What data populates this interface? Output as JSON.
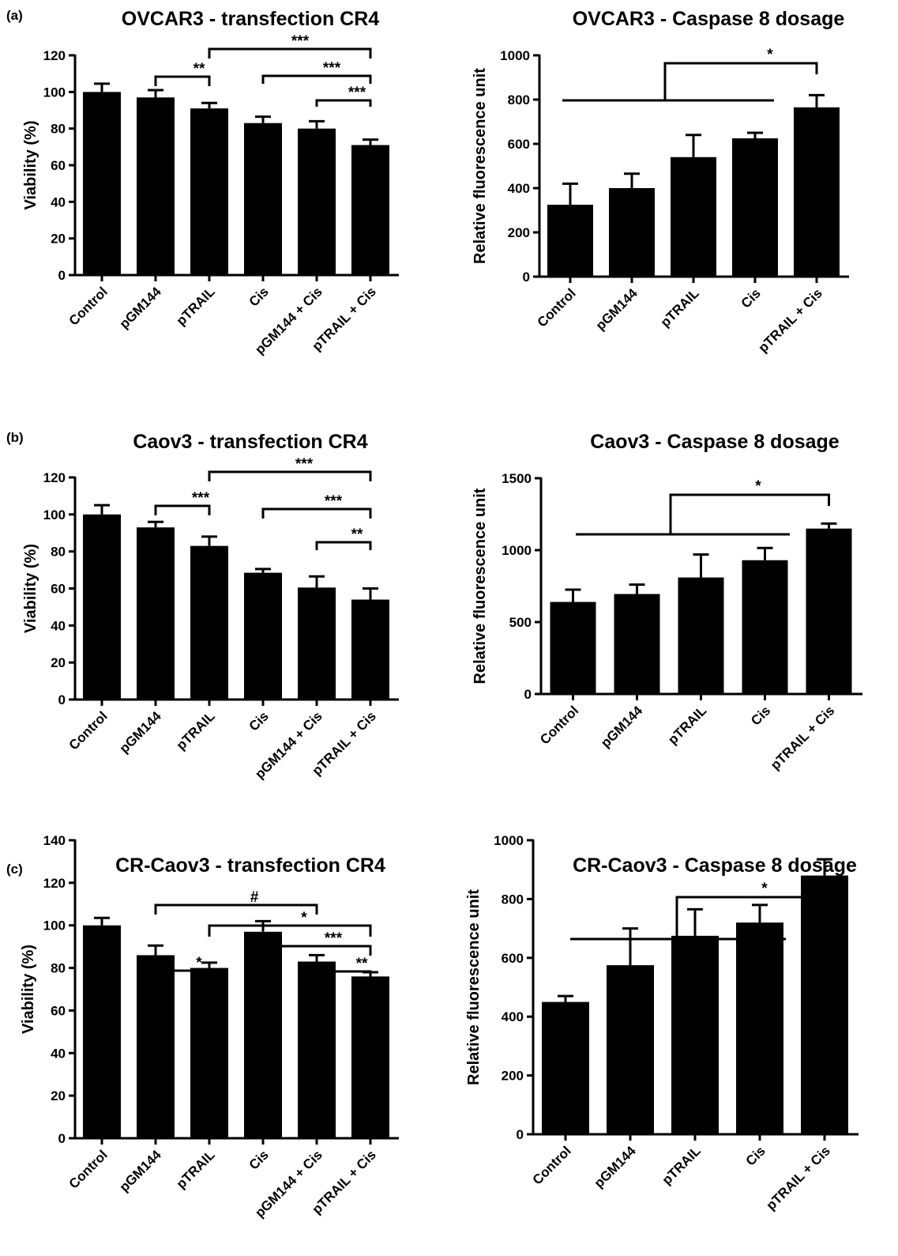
{
  "panel_labels": [
    "(a)",
    "(b)",
    "(c)"
  ],
  "chart_data": [
    {
      "type": "bar",
      "title": "OVCAR3 - transfection CR4",
      "ylabel": "Viability (%)",
      "categories": [
        "Control",
        "pGM144",
        "pTRAIL",
        "Cis",
        "pGM144 + Cis",
        "pTRAIL + Cis"
      ],
      "values": [
        100,
        97,
        91,
        83,
        80,
        71
      ],
      "errors": [
        4.5,
        4,
        3,
        3.5,
        4,
        3
      ],
      "ylim": [
        0,
        120
      ],
      "yticks": [
        0,
        20,
        40,
        60,
        80,
        100,
        120
      ],
      "annotations": [
        {
          "label": "**",
          "from": "pGM144",
          "to": "pTRAIL"
        },
        {
          "label": "***",
          "from": "pTRAIL",
          "to": "pTRAIL + Cis"
        },
        {
          "label": "***",
          "from": "Cis",
          "to": "pTRAIL + Cis"
        },
        {
          "label": "***",
          "from": "pGM144 + Cis",
          "to": "pTRAIL + Cis"
        }
      ]
    },
    {
      "type": "bar",
      "title": "OVCAR3 - Caspase 8 dosage",
      "ylabel": "Relative fluorescence unit",
      "categories": [
        "Control",
        "pGM144",
        "pTRAIL",
        "Cis",
        "pTRAIL + Cis"
      ],
      "values": [
        325,
        400,
        540,
        625,
        765
      ],
      "errors": [
        95,
        65,
        100,
        25,
        55
      ],
      "ylim": [
        0,
        1000
      ],
      "yticks": [
        0,
        200,
        400,
        600,
        800,
        1000
      ],
      "annotations": [
        {
          "label": "*",
          "group": [
            "Control",
            "pGM144",
            "pTRAIL",
            "Cis"
          ],
          "to": "pTRAIL + Cis"
        }
      ]
    },
    {
      "type": "bar",
      "title": "Caov3 - transfection CR4",
      "ylabel": "Viability (%)",
      "categories": [
        "Control",
        "pGM144",
        "pTRAIL",
        "Cis",
        "pGM144 + Cis",
        "pTRAIL + Cis"
      ],
      "values": [
        100,
        93,
        83,
        68.5,
        60.5,
        54
      ],
      "errors": [
        5,
        3,
        5,
        2,
        6,
        6
      ],
      "ylim": [
        0,
        120
      ],
      "yticks": [
        0,
        20,
        40,
        60,
        80,
        100,
        120
      ],
      "annotations": [
        {
          "label": "***",
          "from": "pGM144",
          "to": "pTRAIL"
        },
        {
          "label": "***",
          "from": "pTRAIL",
          "to": "pTRAIL + Cis"
        },
        {
          "label": "***",
          "from": "Cis",
          "to": "pTRAIL + Cis"
        },
        {
          "label": "**",
          "from": "pGM144 + Cis",
          "to": "pTRAIL + Cis"
        }
      ]
    },
    {
      "type": "bar",
      "title": "Caov3 - Caspase 8 dosage",
      "ylabel": "Relative fluorescence unit",
      "categories": [
        "Control",
        "pGM144",
        "pTRAIL",
        "Cis",
        "pTRAIL + Cis"
      ],
      "values": [
        640,
        695,
        810,
        930,
        1150
      ],
      "errors": [
        85,
        65,
        160,
        85,
        35
      ],
      "ylim": [
        0,
        1500
      ],
      "yticks": [
        0,
        500,
        1000,
        1500
      ],
      "annotations": [
        {
          "label": "*",
          "group": [
            "Control",
            "pGM144",
            "pTRAIL",
            "Cis"
          ],
          "to": "pTRAIL + Cis"
        }
      ]
    },
    {
      "type": "bar",
      "title": "CR-Caov3 - transfection CR4",
      "ylabel": "Viability (%)",
      "categories": [
        "Control",
        "pGM144",
        "pTRAIL",
        "Cis",
        "pGM144 + Cis",
        "pTRAIL + Cis"
      ],
      "values": [
        100,
        86,
        80,
        97,
        83,
        76
      ],
      "errors": [
        3.5,
        4.5,
        2.5,
        5,
        3,
        2
      ],
      "ylim": [
        0,
        140
      ],
      "yticks": [
        0,
        20,
        40,
        60,
        80,
        100,
        120,
        140
      ],
      "annotations": [
        {
          "label": "*",
          "from": "pGM144",
          "to": "pTRAIL"
        },
        {
          "label": "#",
          "from": "pGM144",
          "to": "pGM144 + Cis"
        },
        {
          "label": "*",
          "from": "pTRAIL",
          "to": "pTRAIL + Cis"
        },
        {
          "label": "***",
          "from": "Cis",
          "to": "pTRAIL + Cis"
        },
        {
          "label": "**",
          "from": "pGM144 + Cis",
          "to": "pTRAIL + Cis"
        }
      ]
    },
    {
      "type": "bar",
      "title": "CR-Caov3 - Caspase 8 dosage",
      "ylabel": "Relative fluorescence unit",
      "categories": [
        "Control",
        "pGM144",
        "pTRAIL",
        "Cis",
        "pTRAIL + Cis"
      ],
      "values": [
        450,
        575,
        675,
        720,
        880
      ],
      "errors": [
        20,
        125,
        90,
        60,
        55
      ],
      "ylim": [
        0,
        1000
      ],
      "yticks": [
        0,
        200,
        400,
        600,
        800,
        1000
      ],
      "annotations": [
        {
          "label": "*",
          "group": [
            "Control",
            "pGM144",
            "pTRAIL",
            "Cis"
          ],
          "to": "pTRAIL + Cis"
        }
      ]
    }
  ]
}
